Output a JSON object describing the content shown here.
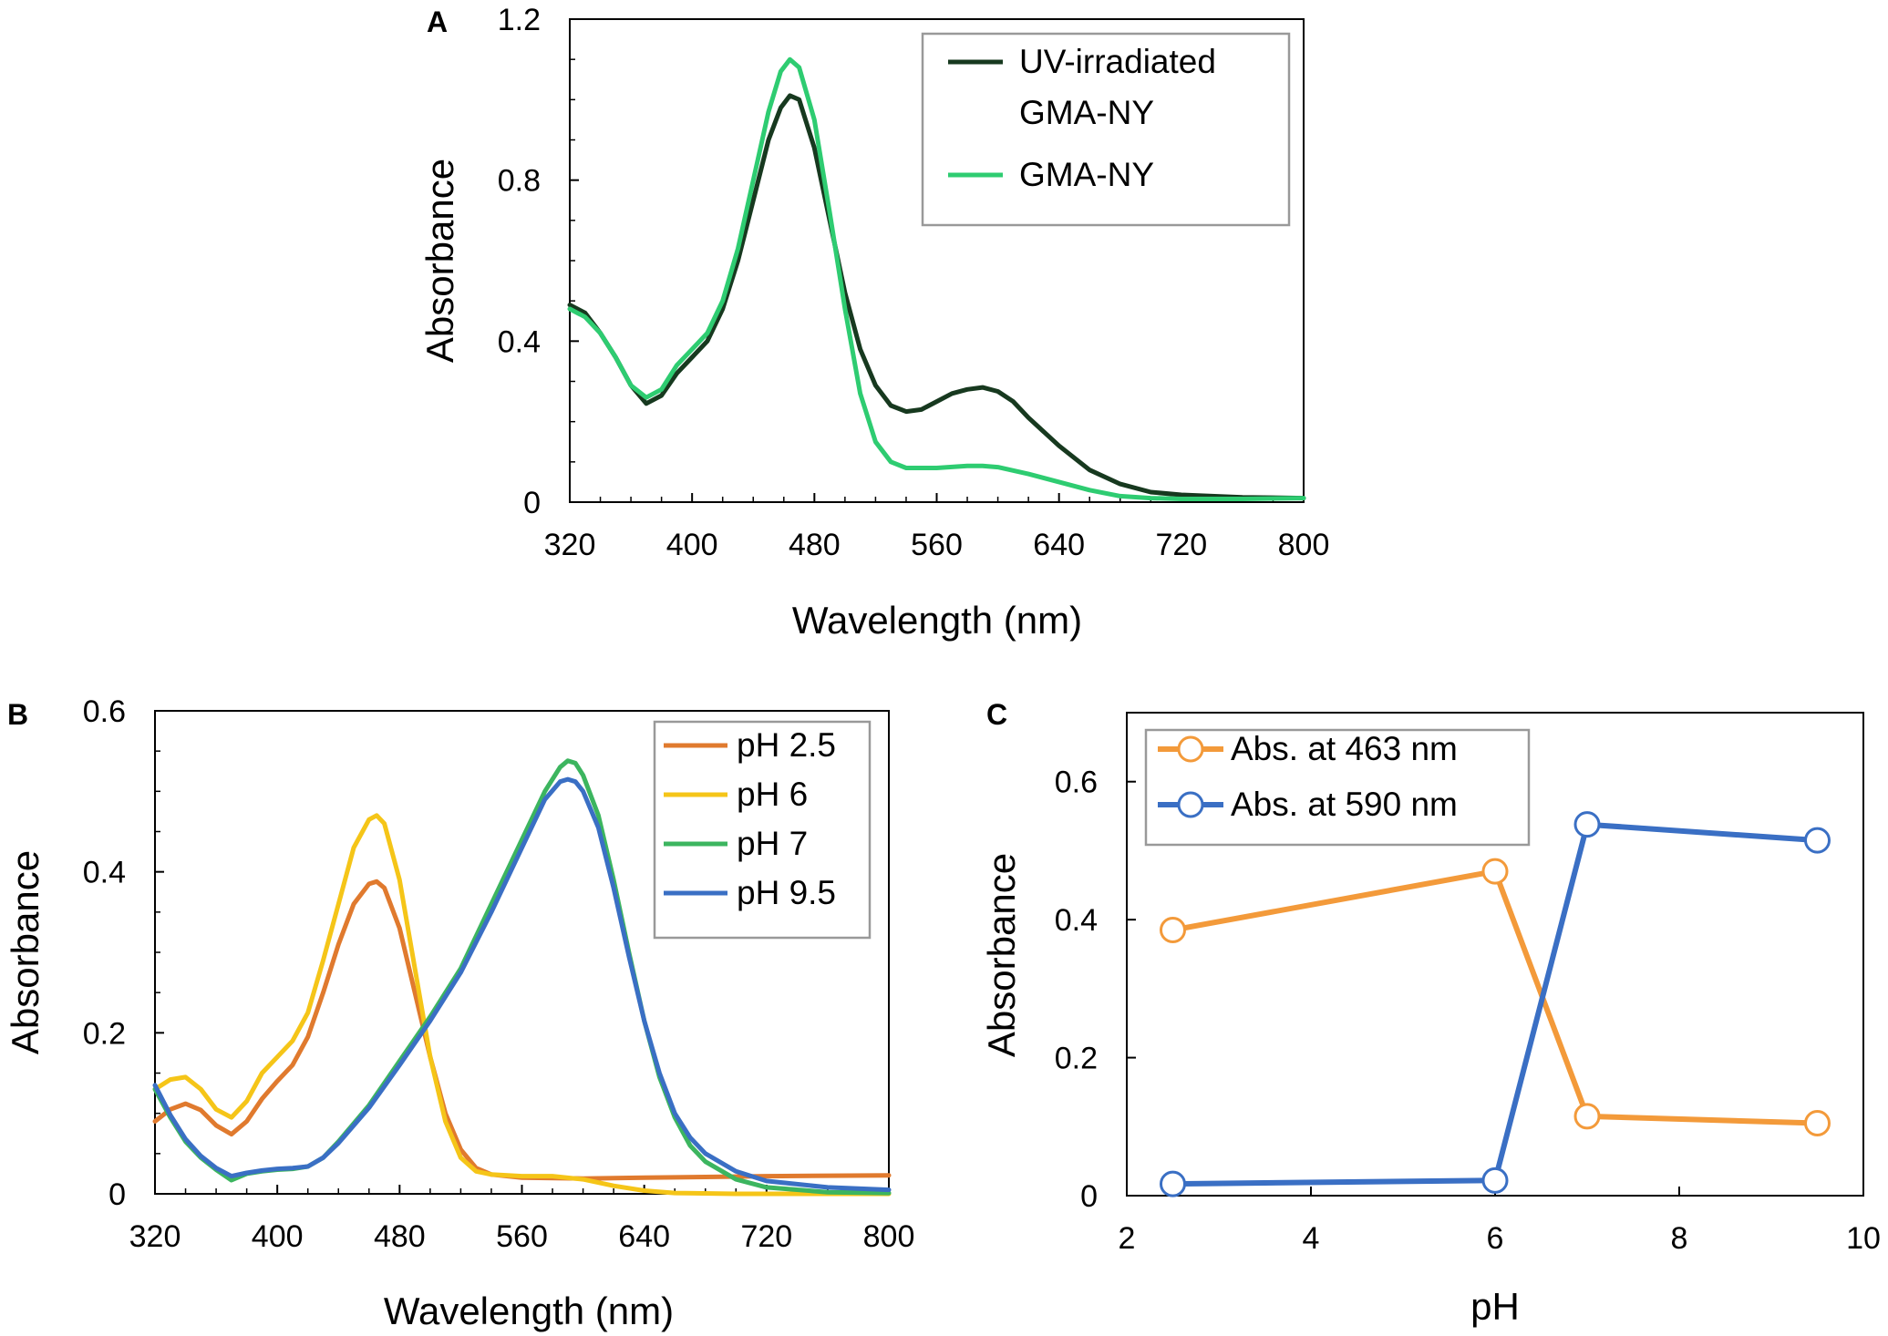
{
  "chart_data": [
    {
      "panel": "A",
      "type": "line",
      "xlabel": "Wavelength (nm)",
      "ylabel": "Absorbance",
      "xlim": [
        320,
        800
      ],
      "ylim": [
        0,
        1.2
      ],
      "x_ticks": [
        "320",
        "400",
        "480",
        "560",
        "640",
        "720",
        "800"
      ],
      "y_ticks": [
        "0",
        "0.4",
        "0.8",
        "1.2"
      ],
      "legend": {
        "position": "top-right",
        "box": true
      },
      "series": [
        {
          "name": "UV-irradiated GMA-NY",
          "label_lines": [
            "UV-irradiated",
            "GMA-NY"
          ],
          "color": "#17391f",
          "points": [
            [
              320,
              0.49
            ],
            [
              330,
              0.47
            ],
            [
              340,
              0.42
            ],
            [
              350,
              0.36
            ],
            [
              360,
              0.29
            ],
            [
              370,
              0.245
            ],
            [
              380,
              0.265
            ],
            [
              390,
              0.32
            ],
            [
              400,
              0.36
            ],
            [
              410,
              0.4
            ],
            [
              420,
              0.48
            ],
            [
              430,
              0.6
            ],
            [
              440,
              0.75
            ],
            [
              450,
              0.9
            ],
            [
              458,
              0.98
            ],
            [
              464,
              1.01
            ],
            [
              470,
              1.0
            ],
            [
              480,
              0.88
            ],
            [
              490,
              0.7
            ],
            [
              500,
              0.52
            ],
            [
              510,
              0.38
            ],
            [
              520,
              0.29
            ],
            [
              530,
              0.24
            ],
            [
              540,
              0.225
            ],
            [
              550,
              0.23
            ],
            [
              560,
              0.25
            ],
            [
              570,
              0.27
            ],
            [
              580,
              0.28
            ],
            [
              590,
              0.285
            ],
            [
              600,
              0.275
            ],
            [
              610,
              0.25
            ],
            [
              620,
              0.21
            ],
            [
              640,
              0.14
            ],
            [
              660,
              0.08
            ],
            [
              680,
              0.045
            ],
            [
              700,
              0.025
            ],
            [
              720,
              0.018
            ],
            [
              760,
              0.012
            ],
            [
              800,
              0.01
            ]
          ]
        },
        {
          "name": "GMA-NY",
          "label_lines": [
            "GMA-NY"
          ],
          "color": "#2ecc71",
          "points": [
            [
              320,
              0.48
            ],
            [
              330,
              0.46
            ],
            [
              340,
              0.42
            ],
            [
              350,
              0.36
            ],
            [
              360,
              0.29
            ],
            [
              370,
              0.26
            ],
            [
              380,
              0.28
            ],
            [
              390,
              0.34
            ],
            [
              400,
              0.38
            ],
            [
              410,
              0.42
            ],
            [
              420,
              0.5
            ],
            [
              430,
              0.63
            ],
            [
              440,
              0.8
            ],
            [
              450,
              0.97
            ],
            [
              458,
              1.07
            ],
            [
              464,
              1.1
            ],
            [
              470,
              1.08
            ],
            [
              480,
              0.95
            ],
            [
              490,
              0.72
            ],
            [
              500,
              0.48
            ],
            [
              510,
              0.27
            ],
            [
              520,
              0.15
            ],
            [
              530,
              0.1
            ],
            [
              540,
              0.085
            ],
            [
              560,
              0.085
            ],
            [
              580,
              0.09
            ],
            [
              590,
              0.09
            ],
            [
              600,
              0.087
            ],
            [
              620,
              0.07
            ],
            [
              640,
              0.05
            ],
            [
              660,
              0.03
            ],
            [
              680,
              0.015
            ],
            [
              700,
              0.01
            ],
            [
              720,
              0.008
            ],
            [
              760,
              0.008
            ],
            [
              800,
              0.01
            ]
          ]
        }
      ]
    },
    {
      "panel": "B",
      "type": "line",
      "xlabel": "Wavelength (nm)",
      "ylabel": "Absorbance",
      "xlim": [
        320,
        800
      ],
      "ylim": [
        0,
        0.6
      ],
      "x_ticks": [
        "320",
        "400",
        "480",
        "560",
        "640",
        "720",
        "800"
      ],
      "y_ticks": [
        "0",
        "0.2",
        "0.4",
        "0.6"
      ],
      "legend": {
        "position": "top-right",
        "box": true
      },
      "series": [
        {
          "name": "pH 2.5",
          "color": "#e07a2e",
          "points": [
            [
              320,
              0.09
            ],
            [
              330,
              0.105
            ],
            [
              340,
              0.112
            ],
            [
              350,
              0.104
            ],
            [
              360,
              0.085
            ],
            [
              370,
              0.074
            ],
            [
              380,
              0.09
            ],
            [
              390,
              0.118
            ],
            [
              400,
              0.14
            ],
            [
              410,
              0.16
            ],
            [
              420,
              0.195
            ],
            [
              430,
              0.25
            ],
            [
              440,
              0.31
            ],
            [
              450,
              0.36
            ],
            [
              460,
              0.385
            ],
            [
              465,
              0.388
            ],
            [
              470,
              0.38
            ],
            [
              480,
              0.33
            ],
            [
              490,
              0.25
            ],
            [
              500,
              0.17
            ],
            [
              510,
              0.1
            ],
            [
              520,
              0.055
            ],
            [
              530,
              0.032
            ],
            [
              540,
              0.024
            ],
            [
              560,
              0.02
            ],
            [
              600,
              0.019
            ],
            [
              640,
              0.02
            ],
            [
              680,
              0.021
            ],
            [
              720,
              0.022
            ],
            [
              800,
              0.023
            ]
          ]
        },
        {
          "name": "pH 6",
          "color": "#f5c518",
          "points": [
            [
              320,
              0.13
            ],
            [
              330,
              0.142
            ],
            [
              340,
              0.145
            ],
            [
              350,
              0.13
            ],
            [
              360,
              0.105
            ],
            [
              370,
              0.095
            ],
            [
              380,
              0.115
            ],
            [
              390,
              0.15
            ],
            [
              400,
              0.17
            ],
            [
              410,
              0.19
            ],
            [
              420,
              0.225
            ],
            [
              430,
              0.29
            ],
            [
              440,
              0.36
            ],
            [
              450,
              0.43
            ],
            [
              460,
              0.465
            ],
            [
              465,
              0.47
            ],
            [
              470,
              0.46
            ],
            [
              480,
              0.39
            ],
            [
              490,
              0.28
            ],
            [
              500,
              0.17
            ],
            [
              510,
              0.09
            ],
            [
              520,
              0.045
            ],
            [
              530,
              0.028
            ],
            [
              540,
              0.024
            ],
            [
              560,
              0.022
            ],
            [
              580,
              0.022
            ],
            [
              600,
              0.018
            ],
            [
              620,
              0.01
            ],
            [
              640,
              0.004
            ],
            [
              660,
              0.001
            ],
            [
              700,
              0.0
            ],
            [
              800,
              0.0
            ]
          ]
        },
        {
          "name": "pH 7",
          "color": "#3cb55f",
          "points": [
            [
              320,
              0.13
            ],
            [
              330,
              0.095
            ],
            [
              340,
              0.065
            ],
            [
              350,
              0.045
            ],
            [
              360,
              0.03
            ],
            [
              370,
              0.017
            ],
            [
              380,
              0.025
            ],
            [
              390,
              0.028
            ],
            [
              400,
              0.03
            ],
            [
              410,
              0.031
            ],
            [
              420,
              0.034
            ],
            [
              430,
              0.045
            ],
            [
              440,
              0.065
            ],
            [
              460,
              0.11
            ],
            [
              480,
              0.165
            ],
            [
              500,
              0.22
            ],
            [
              520,
              0.28
            ],
            [
              540,
              0.36
            ],
            [
              560,
              0.44
            ],
            [
              575,
              0.5
            ],
            [
              585,
              0.53
            ],
            [
              590,
              0.538
            ],
            [
              595,
              0.535
            ],
            [
              600,
              0.52
            ],
            [
              610,
              0.47
            ],
            [
              620,
              0.39
            ],
            [
              630,
              0.3
            ],
            [
              640,
              0.215
            ],
            [
              650,
              0.145
            ],
            [
              660,
              0.095
            ],
            [
              670,
              0.06
            ],
            [
              680,
              0.04
            ],
            [
              700,
              0.018
            ],
            [
              720,
              0.008
            ],
            [
              760,
              0.002
            ],
            [
              800,
              0.001
            ]
          ]
        },
        {
          "name": "pH 9.5",
          "color": "#3a6fc4",
          "points": [
            [
              320,
              0.135
            ],
            [
              330,
              0.098
            ],
            [
              340,
              0.068
            ],
            [
              350,
              0.047
            ],
            [
              360,
              0.032
            ],
            [
              370,
              0.022
            ],
            [
              380,
              0.026
            ],
            [
              390,
              0.029
            ],
            [
              400,
              0.031
            ],
            [
              410,
              0.032
            ],
            [
              420,
              0.034
            ],
            [
              430,
              0.045
            ],
            [
              440,
              0.063
            ],
            [
              460,
              0.107
            ],
            [
              480,
              0.16
            ],
            [
              500,
              0.215
            ],
            [
              520,
              0.275
            ],
            [
              540,
              0.35
            ],
            [
              560,
              0.43
            ],
            [
              575,
              0.49
            ],
            [
              585,
              0.512
            ],
            [
              590,
              0.515
            ],
            [
              595,
              0.512
            ],
            [
              600,
              0.5
            ],
            [
              610,
              0.455
            ],
            [
              620,
              0.38
            ],
            [
              630,
              0.295
            ],
            [
              640,
              0.215
            ],
            [
              650,
              0.15
            ],
            [
              660,
              0.1
            ],
            [
              670,
              0.07
            ],
            [
              680,
              0.05
            ],
            [
              700,
              0.028
            ],
            [
              720,
              0.016
            ],
            [
              760,
              0.008
            ],
            [
              800,
              0.005
            ]
          ]
        }
      ]
    },
    {
      "panel": "C",
      "type": "line",
      "markers": "open-circle",
      "xlabel": "pH",
      "ylabel": "Absorbance",
      "xlim": [
        2,
        10
      ],
      "ylim": [
        0,
        0.7
      ],
      "x_ticks": [
        "2",
        "4",
        "6",
        "8",
        "10"
      ],
      "y_ticks": [
        "0",
        "0.2",
        "0.4",
        "0.6"
      ],
      "legend": {
        "position": "top-left",
        "box": true
      },
      "series": [
        {
          "name": "Abs. at 463 nm",
          "color": "#f39a3a",
          "points": [
            [
              2.5,
              0.385
            ],
            [
              6,
              0.47
            ],
            [
              7,
              0.115
            ],
            [
              9.5,
              0.105
            ]
          ]
        },
        {
          "name": "Abs. at 590 nm",
          "color": "#3a6fc4",
          "points": [
            [
              2.5,
              0.017
            ],
            [
              6,
              0.022
            ],
            [
              7,
              0.538
            ],
            [
              9.5,
              0.515
            ]
          ]
        }
      ]
    }
  ]
}
